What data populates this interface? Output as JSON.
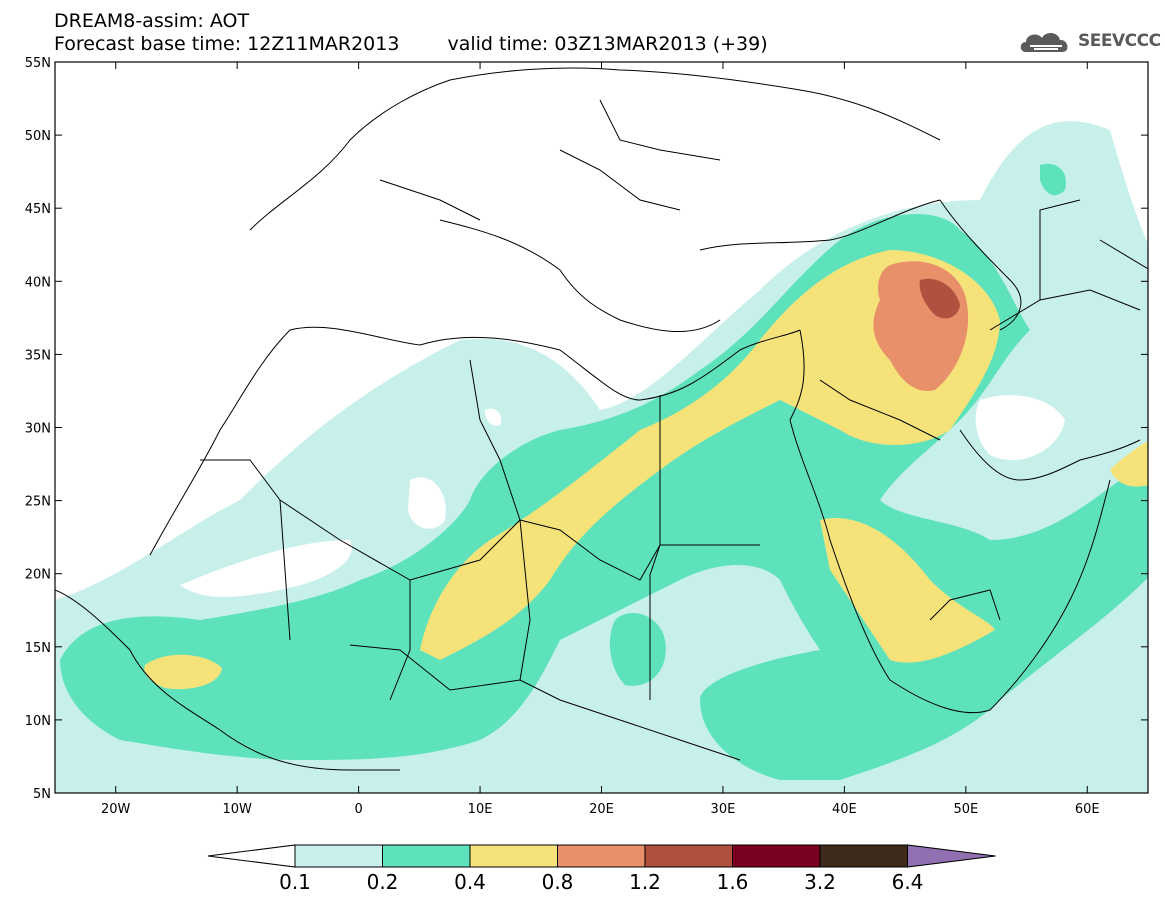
{
  "header": {
    "line1": "DREAM8-assim: AOT",
    "base_time": "Forecast base time: 12Z11MAR2013",
    "valid_time": "valid time: 03Z13MAR2013 (+39)"
  },
  "logo": {
    "icon": "cloud-logo-icon",
    "text": "SEEVCCC"
  },
  "axes": {
    "lat_labels": [
      "55N",
      "50N",
      "45N",
      "40N",
      "35N",
      "30N",
      "25N",
      "20N",
      "15N",
      "10N",
      "5N"
    ],
    "lon_labels": [
      "20W",
      "10W",
      "0",
      "10E",
      "20E",
      "30E",
      "40E",
      "50E",
      "60E"
    ]
  },
  "colorbar": {
    "labels": [
      "0.1",
      "0.2",
      "0.4",
      "0.8",
      "1.2",
      "1.6",
      "3.2",
      "6.4"
    ],
    "colors": [
      "#c8f0ea",
      "#5ee2bc",
      "#f5e37a",
      "#e8906a",
      "#b0503e",
      "#7a0020",
      "#3d2a1a",
      "#9070b0"
    ]
  },
  "map": {
    "variable": "Aerosol optical thickness",
    "lon_range": [
      -25,
      65
    ],
    "lat_range": [
      5,
      55
    ]
  }
}
